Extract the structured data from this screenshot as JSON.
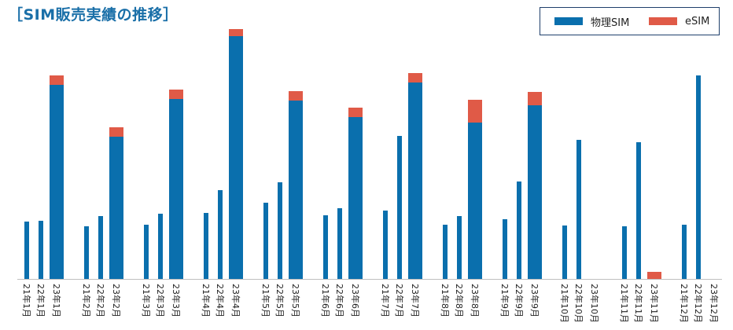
{
  "chart_data": {
    "type": "bar",
    "title": "［SIM販売実績の推移］",
    "stacked": true,
    "legend_position": "top-right",
    "grid": false,
    "ylim": [
      0,
      320
    ],
    "categories": [
      "21年1月",
      "22年1月",
      "23年1月",
      "21年2月",
      "22年2月",
      "23年2月",
      "21年3月",
      "22年3月",
      "23年3月",
      "21年4月",
      "22年4月",
      "23年4月",
      "21年5月",
      "22年5月",
      "23年5月",
      "21年6月",
      "22年6月",
      "23年6月",
      "21年7月",
      "22年7月",
      "23年7月",
      "21年8月",
      "22年8月",
      "23年8月",
      "21年9月",
      "22年9月",
      "23年9月",
      "21年10月",
      "22年10月",
      "23年10月",
      "21年11月",
      "22年11月",
      "23年11月",
      "21年12月",
      "22年12月",
      "23年12月"
    ],
    "series": [
      {
        "name": "物理SIM",
        "color": "#0a6fad",
        "values": [
          73,
          74,
          247,
          67,
          80,
          181,
          69,
          83,
          229,
          84,
          113,
          309,
          97,
          123,
          227,
          81,
          90,
          206,
          87,
          182,
          250,
          69,
          80,
          199,
          76,
          124,
          221,
          68,
          177,
          0,
          67,
          174,
          0,
          69,
          259,
          0
        ]
      },
      {
        "name": "eSIM",
        "color": "#e05a47",
        "values": [
          0,
          0,
          12,
          0,
          0,
          12,
          0,
          0,
          12,
          0,
          0,
          9,
          0,
          0,
          12,
          0,
          0,
          12,
          0,
          0,
          12,
          0,
          0,
          29,
          0,
          0,
          17,
          0,
          0,
          0,
          0,
          0,
          9,
          0,
          0,
          0
        ]
      }
    ]
  }
}
